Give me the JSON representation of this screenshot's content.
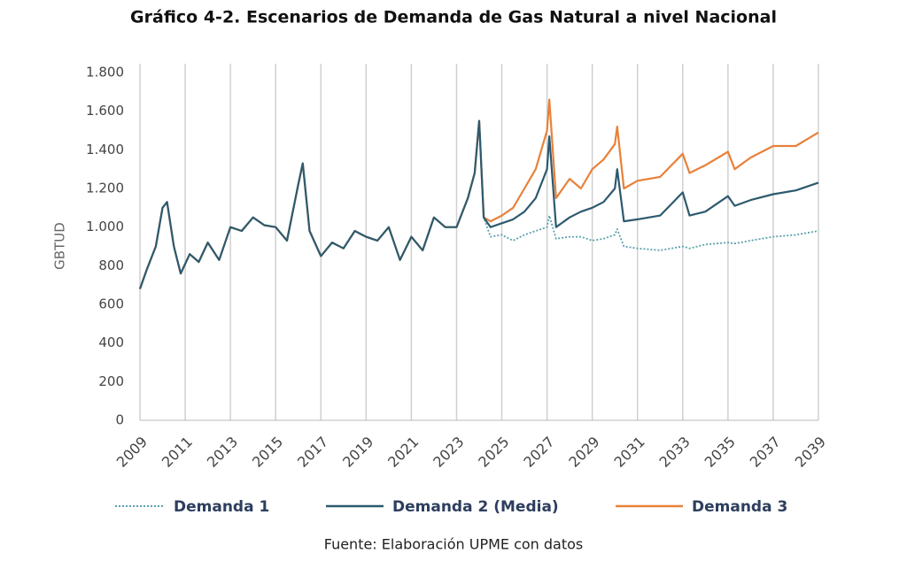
{
  "chart_data": {
    "type": "line",
    "title": "Gráfico 4-2. Escenarios de Demanda de Gas Natural a nivel Nacional",
    "y_label": "GBTUD",
    "source": "Fuente: Elaboración UPME con datos",
    "x": [
      2009.0,
      2009.3,
      2009.7,
      2010.0,
      2010.2,
      2010.5,
      2010.8,
      2011.2,
      2011.6,
      2012.0,
      2012.5,
      2013.0,
      2013.5,
      2014.0,
      2014.5,
      2015.0,
      2015.5,
      2016.0,
      2016.2,
      2016.5,
      2017.0,
      2017.5,
      2018.0,
      2018.5,
      2019.0,
      2019.5,
      2020.0,
      2020.5,
      2021.0,
      2021.5,
      2022.0,
      2022.5,
      2023.0,
      2023.5,
      2023.8,
      2024.0,
      2024.2,
      2024.5,
      2025,
      2025.5,
      2026,
      2026.5,
      2027,
      2027.1,
      2027.4,
      2028,
      2028.5,
      2029,
      2029.5,
      2030,
      2030.1,
      2030.4,
      2031,
      2032,
      2033,
      2033.3,
      2034,
      2035,
      2035.3,
      2036,
      2037,
      2038,
      2039
    ],
    "series": [
      {
        "name": "Demanda 3",
        "color": "#e8813a",
        "dash": "solid",
        "values": [
          680,
          780,
          900,
          1100,
          1130,
          900,
          760,
          860,
          820,
          920,
          830,
          1000,
          980,
          1050,
          1010,
          1000,
          930,
          1220,
          1330,
          980,
          850,
          920,
          890,
          980,
          950,
          930,
          1000,
          830,
          950,
          880,
          1050,
          1000,
          1000,
          1150,
          1280,
          1550,
          1050,
          1030,
          1060,
          1100,
          1200,
          1300,
          1500,
          1660,
          1150,
          1250,
          1200,
          1300,
          1350,
          1430,
          1520,
          1200,
          1240,
          1260,
          1380,
          1280,
          1320,
          1390,
          1300,
          1360,
          1420,
          1420,
          1490
        ]
      },
      {
        "name": "Demanda 1",
        "color": "#5aa0ad",
        "dash": "dotted",
        "values": [
          680,
          780,
          900,
          1100,
          1130,
          900,
          760,
          860,
          820,
          920,
          830,
          1000,
          980,
          1050,
          1010,
          1000,
          930,
          1220,
          1330,
          980,
          850,
          920,
          890,
          980,
          950,
          930,
          1000,
          830,
          950,
          880,
          1050,
          1000,
          1000,
          1150,
          1280,
          1550,
          1050,
          950,
          960,
          930,
          960,
          980,
          1000,
          1060,
          940,
          950,
          950,
          930,
          940,
          960,
          990,
          900,
          890,
          880,
          900,
          890,
          910,
          920,
          915,
          930,
          950,
          960,
          980
        ]
      },
      {
        "name": "Demanda 2 (Media)",
        "color": "#2d5a6e",
        "dash": "solid",
        "values": [
          680,
          780,
          900,
          1100,
          1130,
          900,
          760,
          860,
          820,
          920,
          830,
          1000,
          980,
          1050,
          1010,
          1000,
          930,
          1220,
          1330,
          980,
          850,
          920,
          890,
          980,
          950,
          930,
          1000,
          830,
          950,
          880,
          1050,
          1000,
          1000,
          1150,
          1280,
          1550,
          1050,
          1000,
          1020,
          1040,
          1080,
          1150,
          1300,
          1470,
          1000,
          1050,
          1080,
          1100,
          1130,
          1200,
          1300,
          1030,
          1040,
          1060,
          1180,
          1060,
          1080,
          1160,
          1110,
          1140,
          1170,
          1190,
          1230
        ]
      }
    ],
    "legend_order": [
      1,
      2,
      0
    ],
    "xlim": [
      2009,
      2039
    ],
    "xticks": [
      2009,
      2011,
      2013,
      2015,
      2017,
      2019,
      2021,
      2023,
      2025,
      2027,
      2029,
      2031,
      2033,
      2035,
      2037,
      2039
    ],
    "ylim": [
      0,
      1800
    ],
    "yticks": [
      0,
      200,
      400,
      600,
      800,
      {
        "value": 1000,
        "label": "1.000"
      },
      {
        "value": 1200,
        "label": "1.200"
      },
      {
        "value": 1400,
        "label": "1.400"
      },
      {
        "value": 1600,
        "label": "1.600"
      },
      {
        "value": 1800,
        "label": "1.800"
      }
    ],
    "grid": "x"
  }
}
